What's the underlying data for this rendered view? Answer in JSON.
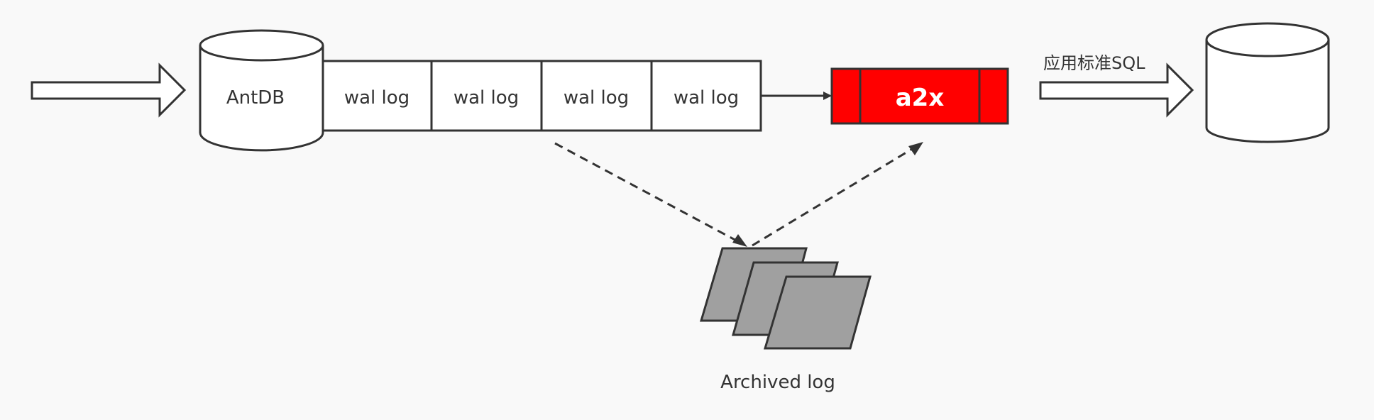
{
  "colors": {
    "background": "#f9f9f9",
    "stroke": "#333333",
    "node_fill": "#ffffff",
    "a2x_fill": "#ff0000",
    "a2x_text": "#ffffff",
    "archive_fill": "#a0a0a0"
  },
  "nodes": {
    "source_db": {
      "label": "AntDB"
    },
    "wal_logs": [
      {
        "label": "wal log"
      },
      {
        "label": "wal log"
      },
      {
        "label": "wal log"
      },
      {
        "label": "wal log"
      }
    ],
    "a2x": {
      "label": "a2x"
    },
    "apply_sql": {
      "label": "应用标准SQL"
    },
    "archived": {
      "label": "Archived log"
    }
  }
}
